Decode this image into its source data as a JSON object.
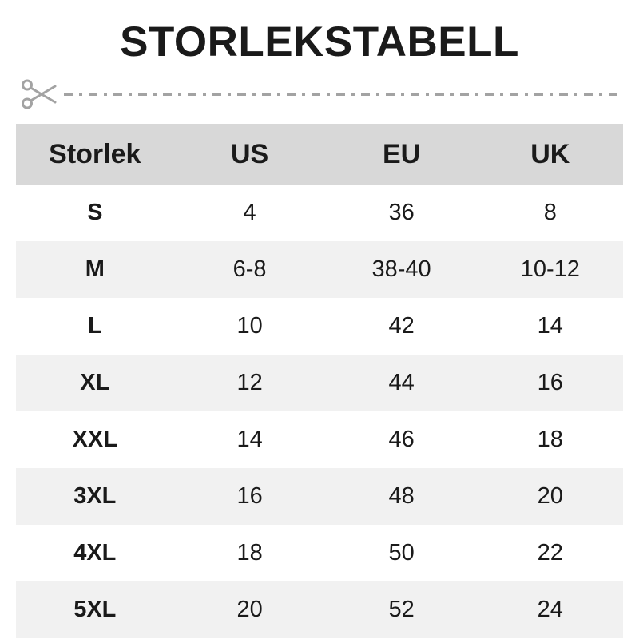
{
  "title": "STORLEKSTABELL",
  "icons": {
    "scissors": "✂"
  },
  "colors": {
    "header_bg": "#d8d8d8",
    "row_alt_bg": "#f1f1f1",
    "row_bg": "#ffffff",
    "text": "#1a1a1a",
    "cut_line": "#a3a3a3"
  },
  "chart_data": {
    "type": "table",
    "title": "STORLEKSTABELL",
    "columns": [
      "Storlek",
      "US",
      "EU",
      "UK"
    ],
    "rows": [
      [
        "S",
        "4",
        "36",
        "8"
      ],
      [
        "M",
        "6-8",
        "38-40",
        "10-12"
      ],
      [
        "L",
        "10",
        "42",
        "14"
      ],
      [
        "XL",
        "12",
        "44",
        "16"
      ],
      [
        "XXL",
        "14",
        "46",
        "18"
      ],
      [
        "3XL",
        "16",
        "48",
        "20"
      ],
      [
        "4XL",
        "18",
        "50",
        "22"
      ],
      [
        "5XL",
        "20",
        "52",
        "24"
      ]
    ],
    "layout": {
      "alternating_rows": true,
      "header_background": "#d8d8d8",
      "alt_row_background": "#f1f1f1",
      "grid": false
    }
  }
}
